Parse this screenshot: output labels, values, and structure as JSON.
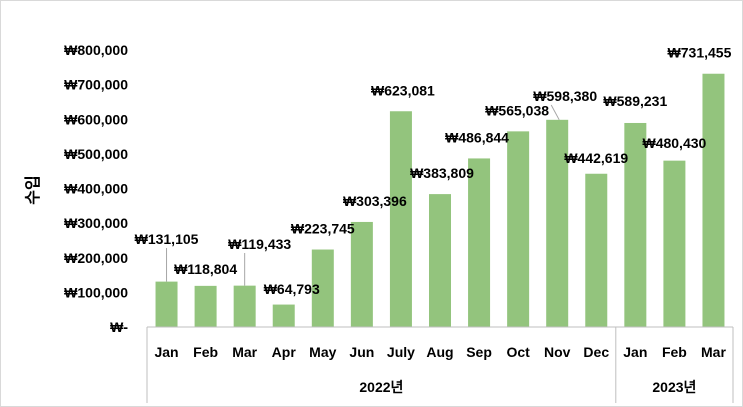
{
  "chart_data": {
    "type": "bar",
    "title": "",
    "ylabel": "수입",
    "xlabel": "",
    "ylim": [
      0,
      800000
    ],
    "yticks": [
      0,
      100000,
      200000,
      300000,
      400000,
      500000,
      600000,
      700000,
      800000
    ],
    "ytick_labels": [
      "₩-",
      "₩100,000",
      "₩200,000",
      "₩300,000",
      "₩400,000",
      "₩500,000",
      "₩600,000",
      "₩700,000",
      "₩800,000"
    ],
    "categories": [
      "Jan",
      "Feb",
      "Mar",
      "Apr",
      "May",
      "Jun",
      "July",
      "Aug",
      "Sep",
      "Oct",
      "Nov",
      "Dec",
      "Jan",
      "Feb",
      "Mar"
    ],
    "values": [
      131105,
      118804,
      119433,
      64793,
      223745,
      303396,
      623081,
      383809,
      486844,
      565038,
      598380,
      442619,
      589231,
      480430,
      731455
    ],
    "value_labels": [
      "₩131,105",
      "₩118,804",
      "₩119,433",
      "₩64,793",
      "₩223,745",
      "₩303,396",
      "₩623,081",
      "₩383,809",
      "₩486,844",
      "₩565,038",
      "₩598,380",
      "₩442,619",
      "₩589,231",
      "₩480,430",
      "₩731,455"
    ],
    "groups": [
      {
        "label": "2022년",
        "count": 12
      },
      {
        "label": "2023년",
        "count": 3
      }
    ],
    "bar_color": "#93c47d",
    "grid": false,
    "legend": "none"
  }
}
